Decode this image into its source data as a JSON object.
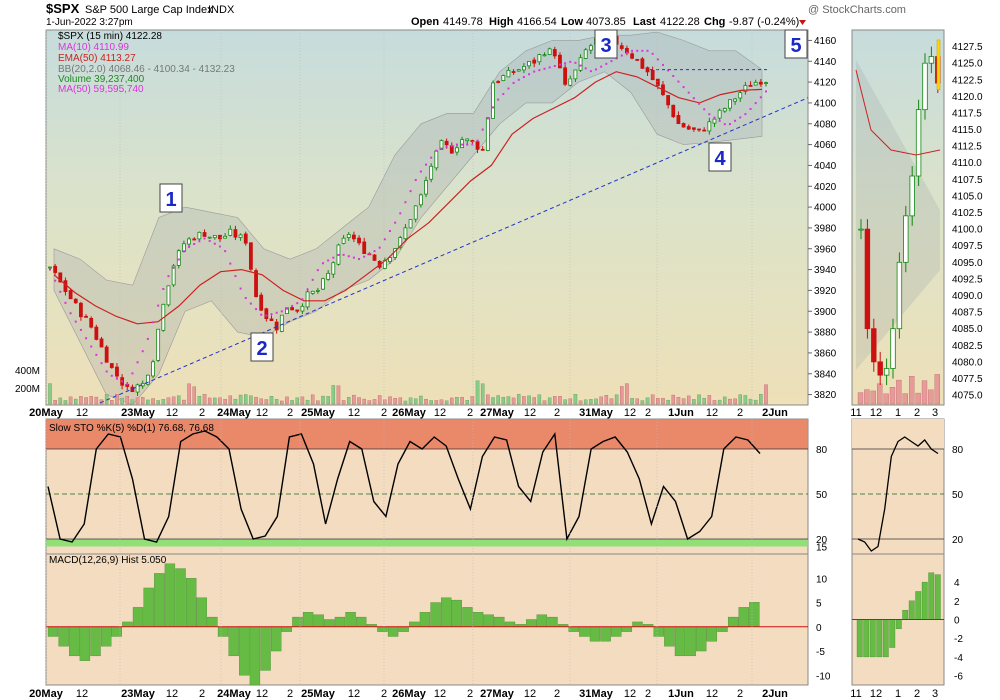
{
  "header": {
    "symbol": "$SPX",
    "index_name": "S&P 500 Large Cap Index",
    "exchange": "INDX",
    "watermark": "@ StockCharts.com",
    "datetime": "1-Jun-2022 3:27pm",
    "ohlc": {
      "open_label": "Open",
      "open": "4149.78",
      "high_label": "High",
      "high": "4166.54",
      "low_label": "Low",
      "low": "4073.85",
      "last_label": "Last",
      "last": "4122.28",
      "chg_label": "Chg",
      "chg": "-9.87 (-0.24%)"
    }
  },
  "legend": [
    {
      "text": "$SPX (15 min) 4122.28",
      "color": "#000000"
    },
    {
      "text": "MA(10) 4110.99",
      "color": "#dd33dd"
    },
    {
      "text": "EMA(50) 4113.27",
      "color": "#cc2222"
    },
    {
      "text": "BB(20,2.0) 4068.46 - 4100.34 - 4132.23",
      "color": "#777777"
    },
    {
      "text": "Volume 39,237,400",
      "color": "#228822"
    },
    {
      "text": "MA(50) 59,595,740",
      "color": "#dd33dd"
    }
  ],
  "annotations": [
    "1",
    "2",
    "3",
    "4",
    "5"
  ],
  "volume_labels": [
    "400M",
    "200M"
  ],
  "colors": {
    "up": "#118811",
    "down": "#cc1111",
    "ma10": "#dd33dd",
    "ema50": "#cc2222",
    "bb": "#999999",
    "trendline": "#2233cc",
    "annot": "#1a28c8",
    "sto_line": "#000000",
    "sto_over": "#e87a5a",
    "sto_under": "#7ee06a",
    "macd_hist": "#66bb44",
    "macd_zero": "#cc1111"
  },
  "chart_data": [
    {
      "type": "candlestick",
      "title": "$SPX (15 min)",
      "ylim": [
        3810,
        4170
      ],
      "y_ticks": [
        3820,
        3840,
        3860,
        3880,
        3900,
        3920,
        3940,
        3960,
        3980,
        4000,
        4020,
        4040,
        4060,
        4080,
        4100,
        4120,
        4140,
        4160
      ],
      "x_tick_labels": [
        "20May",
        "12",
        "23May",
        "12",
        "2",
        "24May",
        "12",
        "2",
        "25May",
        "12",
        "2",
        "26May",
        "12",
        "2",
        "27May",
        "12",
        "2",
        "31May",
        "12",
        "2",
        "1Jun",
        "12",
        "2",
        "2Jun"
      ],
      "close_path_x": [
        0,
        5,
        8,
        10,
        12,
        15,
        18,
        20,
        22,
        24,
        26,
        28,
        30,
        31,
        33,
        35,
        38,
        40,
        42,
        44,
        46,
        48,
        50,
        52,
        54,
        56,
        58,
        60,
        62,
        64,
        66,
        68,
        70,
        72,
        74,
        76,
        78,
        80,
        82,
        84,
        86,
        88,
        90,
        92,
        94,
        96,
        98,
        100,
        102,
        104,
        106,
        108,
        110,
        112,
        114,
        116,
        118,
        120,
        122,
        124,
        126,
        128,
        130,
        132,
        134,
        136,
        138,
        139
      ],
      "close_path_y": [
        3942,
        3905,
        3885,
        3865,
        3845,
        3825,
        3830,
        3855,
        3910,
        3945,
        3965,
        3972,
        3975,
        3972,
        3970,
        3975,
        3968,
        3915,
        3895,
        3885,
        3905,
        3902,
        3915,
        3920,
        3935,
        3960,
        3975,
        3963,
        3955,
        3945,
        3955,
        3968,
        3990,
        4010,
        4040,
        4060,
        4055,
        4065,
        4062,
        4055,
        4120,
        4125,
        4130,
        4135,
        4140,
        4150,
        4148,
        4115,
        4130,
        4150,
        4160,
        4162,
        4158,
        4150,
        4140,
        4130,
        4115,
        4098,
        4080,
        4075,
        4072,
        4080,
        4090,
        4100,
        4110,
        4118,
        4122,
        4122
      ],
      "ema50_y": [
        3935,
        3918,
        3905,
        3895,
        3888,
        3890,
        3905,
        3925,
        3938,
        3940,
        3935,
        3920,
        3910,
        3910,
        3920,
        3935,
        3950,
        3970,
        3985,
        4005,
        4025,
        4040,
        4070,
        4085,
        4095,
        4105,
        4120,
        4130,
        4125,
        4115,
        4105,
        4100,
        4108,
        4112,
        4113
      ],
      "ma10_y": [
        3940,
        3900,
        3870,
        3840,
        3830,
        3870,
        3930,
        3960,
        3970,
        3960,
        3915,
        3895,
        3900,
        3910,
        3945,
        3955,
        3950,
        3960,
        3990,
        4030,
        4055,
        4060,
        4060,
        4100,
        4120,
        4130,
        4135,
        4140,
        4130,
        4140,
        4150,
        4150,
        4130,
        4110,
        4090,
        4078,
        4090,
        4111
      ],
      "bb_upper_y": [
        3960,
        3950,
        3930,
        3925,
        3990,
        4000,
        3995,
        3990,
        3960,
        3950,
        3960,
        3980,
        4000,
        4050,
        4080,
        4090,
        4090,
        4130,
        4150,
        4160,
        4160,
        4165,
        4165,
        4168,
        4160,
        4150,
        4150,
        4132
      ],
      "bb_lower_y": [
        3920,
        3870,
        3820,
        3810,
        3840,
        3900,
        3910,
        3880,
        3875,
        3890,
        3900,
        3920,
        3930,
        3950,
        3990,
        4020,
        4050,
        4080,
        4100,
        4100,
        4120,
        4130,
        4110,
        4070,
        4060,
        4062,
        4065,
        4068
      ],
      "trendline": {
        "x": [
          30,
          760
        ],
        "y": [
          3812,
          4105
        ]
      },
      "resistance_line": {
        "from": "31May high",
        "y": 4132
      },
      "volume_axis_labels": [
        "400M",
        "200M"
      ]
    },
    {
      "type": "line",
      "title": "Slow STO %K(5) %D(1) 76.68, 76.68",
      "ylim": [
        10,
        100
      ],
      "y_ticks": [
        15,
        20,
        50,
        80
      ],
      "levels": {
        "overbought": 80,
        "oversold": 20,
        "mid": 50
      },
      "k": [
        55,
        20,
        18,
        30,
        80,
        90,
        88,
        60,
        20,
        18,
        35,
        85,
        90,
        92,
        88,
        80,
        40,
        20,
        22,
        35,
        88,
        90,
        70,
        30,
        60,
        85,
        80,
        45,
        35,
        70,
        85,
        80,
        88,
        82,
        60,
        40,
        75,
        88,
        86,
        55,
        45,
        78,
        90,
        20,
        35,
        80,
        85,
        88,
        78,
        60,
        30,
        55,
        45,
        20,
        25,
        35,
        80,
        88,
        86,
        77
      ]
    },
    {
      "type": "bar",
      "title": "MACD(12,26,9) Hist 5.050",
      "ylim": [
        -12,
        15
      ],
      "y_ticks": [
        -10,
        -5,
        0,
        5,
        10
      ],
      "hist": [
        -2,
        -4,
        -6,
        -7,
        -6,
        -4,
        -2,
        1,
        4,
        8,
        11,
        13,
        12,
        10,
        6,
        2,
        -2,
        -6,
        -10,
        -12,
        -9,
        -5,
        -1,
        2,
        3,
        2.5,
        1.5,
        2,
        3,
        2,
        0.5,
        -1,
        -2,
        -1,
        1,
        3,
        5,
        6,
        5.5,
        4,
        3,
        2.5,
        2,
        1,
        0.5,
        1.5,
        2.5,
        2,
        0.5,
        -1,
        -2,
        -3,
        -3,
        -2,
        -1,
        1,
        0.5,
        -2,
        -4,
        -6,
        -6,
        -5,
        -3,
        -1,
        2,
        4,
        5.05
      ]
    }
  ],
  "side_charts": {
    "price_ticks": [
      "4127.5",
      "4125.0",
      "4122.5",
      "4120.0",
      "4117.5",
      "4115.0",
      "4112.5",
      "4110.0",
      "4107.5",
      "4105.0",
      "4102.5",
      "4100.0",
      "4097.5",
      "4095.0",
      "4092.5",
      "4090.0",
      "4087.5",
      "4085.0",
      "4082.5",
      "4080.0",
      "4077.5",
      "4075.0"
    ],
    "sto_ticks": [
      "80",
      "50",
      "20"
    ],
    "macd_ticks": [
      "4",
      "2",
      "0",
      "-2",
      "-4",
      "-6"
    ],
    "x_ticks": [
      "11",
      "12",
      "1",
      "2",
      "3"
    ],
    "close": [
      4100,
      4085,
      4080,
      4078,
      4079,
      4085,
      4095,
      4102,
      4108,
      4118,
      4125,
      4126,
      4122
    ],
    "k": [
      20,
      18,
      12,
      15,
      40,
      75,
      85,
      88,
      85,
      82,
      86,
      80,
      77
    ],
    "hist": [
      -4,
      -4,
      -4,
      -4,
      -4,
      -3,
      -1,
      1,
      2,
      3,
      4,
      5,
      4.8
    ]
  }
}
